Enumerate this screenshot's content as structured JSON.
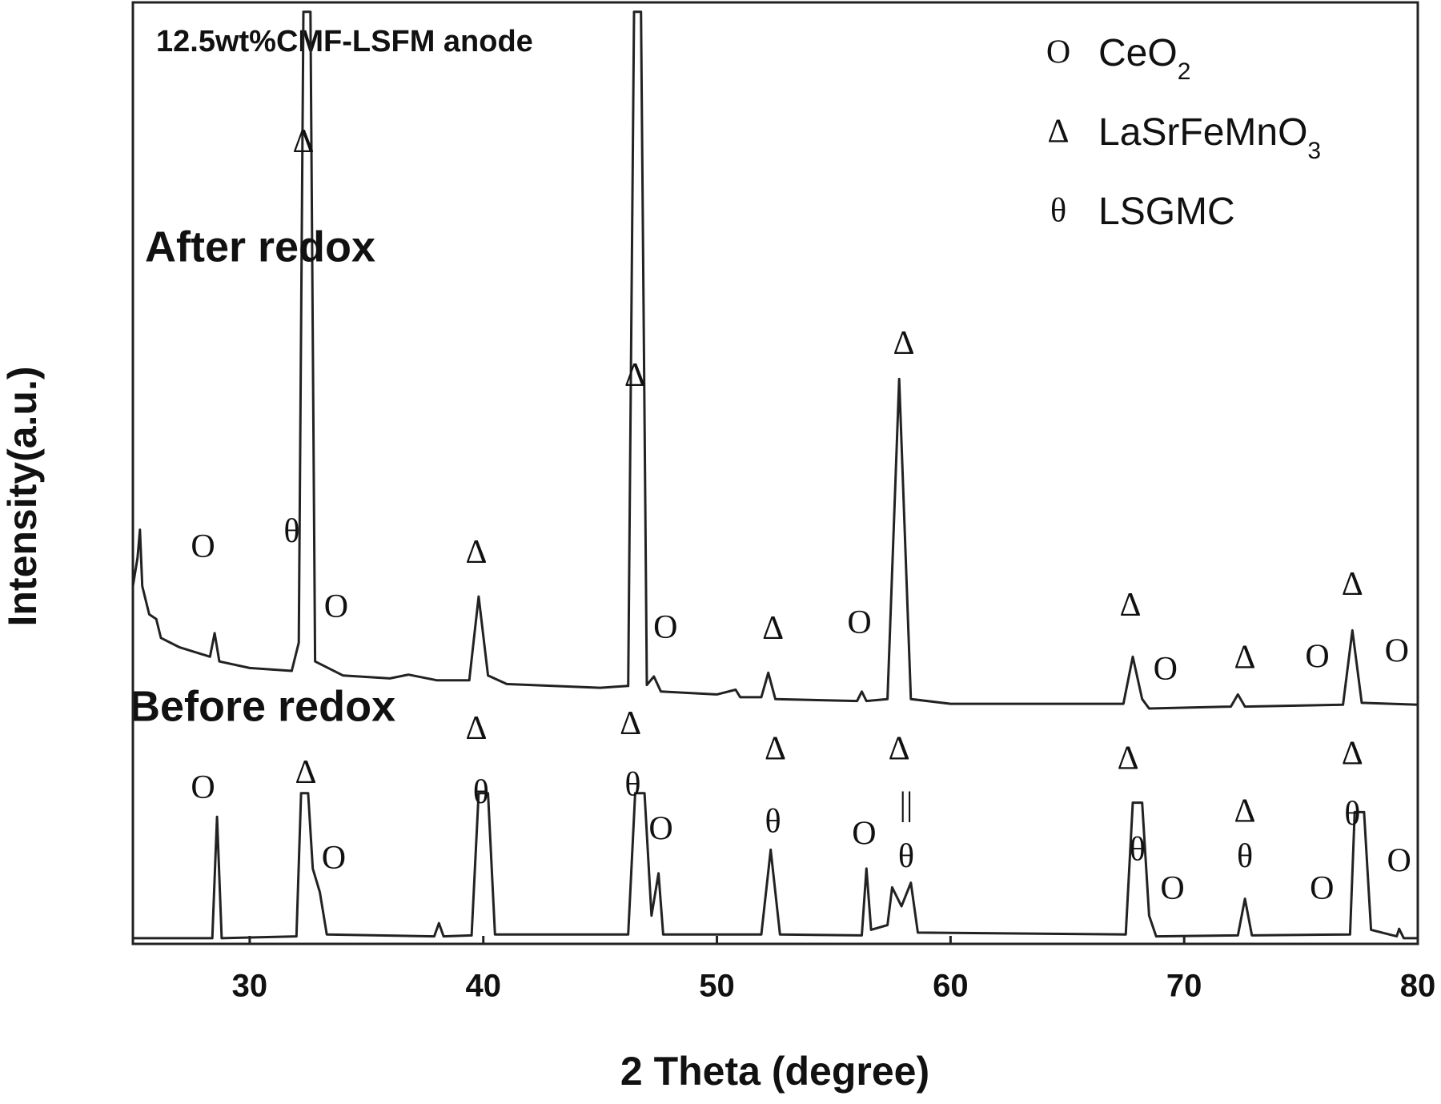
{
  "chart_data": {
    "type": "line",
    "title": "12.5wt%CMF-LSFM anode",
    "x_label": "2 Theta (degree)",
    "y_label": "Intensity(a.u.)",
    "xlim": [
      25,
      80
    ],
    "xticks": [
      30,
      40,
      50,
      60,
      70,
      80
    ],
    "ylim": [
      0,
      100
    ],
    "series": [
      {
        "name": "After redox",
        "color": "#222222",
        "x": [
          25.0,
          25.2,
          25.3,
          25.4,
          25.7,
          26.0,
          26.2,
          27.0,
          28.3,
          28.5,
          28.7,
          30,
          31.8,
          32.1,
          32.3,
          32.6,
          32.8,
          34,
          36,
          36.8,
          38,
          39.4,
          39.8,
          40.2,
          41,
          45,
          46.2,
          46.45,
          46.75,
          47,
          47.3,
          47.6,
          50,
          50.8,
          51,
          51.9,
          52.2,
          52.5,
          56,
          56.2,
          56.4,
          57.3,
          57.8,
          58.3,
          60,
          67.4,
          67.8,
          68.2,
          68.5,
          72,
          72.3,
          72.6,
          76.8,
          77.2,
          77.6,
          80
        ],
        "values": [
          38,
          41,
          44,
          38,
          35,
          34.5,
          32.5,
          31.5,
          30.5,
          33,
          30,
          29.3,
          29,
          32,
          99,
          99,
          30,
          28.5,
          28.2,
          28.6,
          28,
          28,
          36.9,
          28.5,
          27.6,
          27.2,
          27.4,
          99,
          99,
          27.5,
          28.4,
          26.8,
          26.5,
          27,
          26.2,
          26.2,
          28.8,
          26,
          25.8,
          26.8,
          25.8,
          26,
          60,
          26,
          25.5,
          25.5,
          30.5,
          26,
          25,
          25.2,
          26.5,
          25.2,
          25.4,
          33.3,
          25.6,
          25.4
        ]
      },
      {
        "name": "Before redox",
        "color": "#222222",
        "x": [
          25,
          28.4,
          28.6,
          28.8,
          32,
          32.2,
          32.5,
          32.7,
          33.0,
          33.3,
          37.9,
          38.1,
          38.3,
          39.5,
          39.8,
          40.2,
          40.5,
          46.2,
          46.5,
          46.9,
          47.2,
          47.5,
          47.7,
          51.9,
          52.3,
          52.7,
          56.2,
          56.4,
          56.6,
          57.3,
          57.5,
          57.9,
          58.3,
          58.6,
          67.5,
          67.8,
          68.2,
          68.5,
          68.8,
          72.3,
          72.6,
          72.9,
          77.1,
          77.3,
          77.7,
          78.0,
          79.1,
          79.2,
          79.4,
          80
        ],
        "values": [
          0.6,
          0.6,
          13.5,
          0.6,
          0.8,
          16,
          16,
          8,
          5.5,
          1,
          0.8,
          2.2,
          0.8,
          0.9,
          16,
          16,
          1,
          1,
          16,
          16,
          3,
          7.5,
          1,
          1,
          10,
          1,
          0.9,
          8,
          1.5,
          2,
          6,
          4,
          6.5,
          1.2,
          1,
          15,
          15,
          3,
          0.8,
          0.9,
          4.8,
          0.9,
          1,
          14,
          14,
          1.5,
          0.8,
          1.6,
          0.6,
          0.6
        ]
      }
    ],
    "peak_labels": [
      {
        "text": "Δ",
        "x": 32.3,
        "y": 84.9
      },
      {
        "text": "Δ",
        "x": 46.5,
        "y": 60.1
      },
      {
        "text": "Δ",
        "x": 58.0,
        "y": 63.5
      },
      {
        "text": "O",
        "x": 28.0,
        "y": 41.9
      },
      {
        "text": "θ",
        "x": 31.8,
        "y": 43.5
      },
      {
        "text": "O",
        "x": 33.7,
        "y": 35.5
      },
      {
        "text": "Δ",
        "x": 39.7,
        "y": 41.3
      },
      {
        "text": "O",
        "x": 47.8,
        "y": 33.3
      },
      {
        "text": "Δ",
        "x": 52.4,
        "y": 33.2
      },
      {
        "text": "O",
        "x": 56.1,
        "y": 33.8
      },
      {
        "text": "Δ",
        "x": 67.7,
        "y": 35.7
      },
      {
        "text": "O",
        "x": 69.2,
        "y": 28.9
      },
      {
        "text": "Δ",
        "x": 72.6,
        "y": 30.1
      },
      {
        "text": "O",
        "x": 75.7,
        "y": 30.2
      },
      {
        "text": "Δ",
        "x": 77.2,
        "y": 37.9
      },
      {
        "text": "O",
        "x": 79.1,
        "y": 30.8
      },
      {
        "text": "O",
        "x": 28.0,
        "y": 16.3
      },
      {
        "text": "Δ",
        "x": 32.4,
        "y": 17.9
      },
      {
        "text": "O",
        "x": 33.6,
        "y": 8.8
      },
      {
        "text": "Δ",
        "x": 39.7,
        "y": 22.6
      },
      {
        "text": "θ",
        "x": 39.9,
        "y": 15.8
      },
      {
        "text": "Δ",
        "x": 46.3,
        "y": 23.1
      },
      {
        "text": "θ",
        "x": 46.4,
        "y": 16.6
      },
      {
        "text": "O",
        "x": 47.6,
        "y": 11.9
      },
      {
        "text": "Δ",
        "x": 52.5,
        "y": 20.4
      },
      {
        "text": "θ",
        "x": 52.4,
        "y": 12.7
      },
      {
        "text": "O",
        "x": 56.3,
        "y": 11.4
      },
      {
        "text": "Δ",
        "x": 57.8,
        "y": 20.4
      },
      {
        "text": "||",
        "x": 58.1,
        "y": 14.5
      },
      {
        "text": "θ",
        "x": 58.1,
        "y": 9.0
      },
      {
        "text": "Δ",
        "x": 67.6,
        "y": 19.4
      },
      {
        "text": "θ",
        "x": 68.0,
        "y": 9.7
      },
      {
        "text": "O",
        "x": 69.5,
        "y": 5.6
      },
      {
        "text": "Δ",
        "x": 72.6,
        "y": 13.8
      },
      {
        "text": "θ",
        "x": 72.6,
        "y": 9.0
      },
      {
        "text": "O",
        "x": 75.9,
        "y": 5.6
      },
      {
        "text": "Δ",
        "x": 77.2,
        "y": 19.9
      },
      {
        "text": "θ",
        "x": 77.2,
        "y": 13.5
      },
      {
        "text": "O",
        "x": 79.2,
        "y": 8.5
      }
    ],
    "legend": [
      {
        "symbol": "O",
        "label": "CeO",
        "subscript": "2"
      },
      {
        "symbol": "Δ",
        "label": "LaSrFeMnO",
        "subscript": "3"
      },
      {
        "symbol": "θ",
        "label": "LSGMC"
      }
    ]
  }
}
